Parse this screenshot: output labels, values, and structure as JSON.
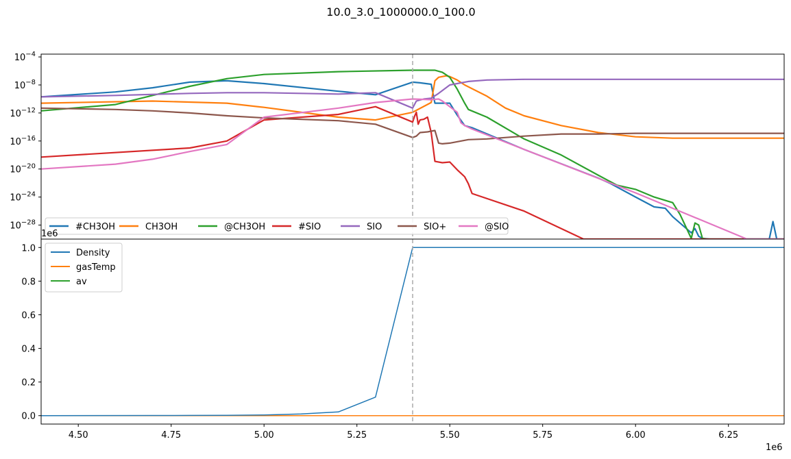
{
  "figure_title": "10.0_3.0_1000000.0_100.0",
  "colors": {
    "#CH3OH": "#1f77b4",
    "CH3OH": "#ff7f0e",
    "@CH3OH": "#2ca02c",
    "#SIO": "#d62728",
    "SIO": "#9467bd",
    "SIO+": "#8c564b",
    "@SIO": "#e377c2",
    "Density": "#1f77b4",
    "gasTemp": "#ff7f0e",
    "av": "#2ca02c",
    "vline": "#aaaaaa"
  },
  "chart_data": [
    {
      "type": "line",
      "yscale": "log",
      "xlim": [
        4400000,
        6400000
      ],
      "ylim_log10": [
        -30,
        -3.6
      ],
      "ytick_labels": [
        "10^-4",
        "10^-8",
        "10^-12",
        "10^-16",
        "10^-20",
        "10^-24",
        "10^-28"
      ],
      "ytick_exponents": [
        -4,
        -8,
        -12,
        -16,
        -20,
        -24,
        -28
      ],
      "vline_x": 5400000,
      "legend_placement": "lower-left",
      "legend_columns": 7,
      "series": [
        {
          "name": "#CH3OH",
          "x": [
            4400000,
            4600000,
            4700000,
            4800000,
            4900000,
            5000000,
            5200000,
            5300000,
            5400000,
            5420000,
            5450000,
            5460000,
            5480000,
            5500000,
            5520000,
            5540000,
            5560000,
            5700000,
            5900000,
            5930000,
            6000000,
            6050000,
            6080000,
            6100000,
            6150000,
            6160000,
            6170000,
            6180000,
            6200000,
            6300000,
            6360000,
            6370000,
            6380000,
            6400000
          ],
          "log10_y": [
            -9.7,
            -9.0,
            -8.4,
            -7.6,
            -7.4,
            -7.8,
            -8.9,
            -9.4,
            -7.6,
            -7.7,
            -7.9,
            -10.6,
            -10.6,
            -10.6,
            -12.3,
            -13.8,
            -14.1,
            -17.2,
            -21.3,
            -22.0,
            -24.0,
            -25.4,
            -25.6,
            -26.8,
            -29.1,
            -28.5,
            -29.6,
            -29.9,
            -30,
            -30,
            -30,
            -27.5,
            -30,
            -30
          ]
        },
        {
          "name": "CH3OH",
          "x": [
            4400000,
            4700000,
            4900000,
            5000000,
            5100000,
            5200000,
            5300000,
            5400000,
            5450000,
            5460000,
            5470000,
            5490000,
            5500000,
            5520000,
            5540000,
            5600000,
            5650000,
            5700000,
            5800000,
            5900000,
            6000000,
            6100000,
            6200000,
            6400000
          ],
          "log10_y": [
            -10.6,
            -10.3,
            -10.6,
            -11.2,
            -11.9,
            -12.6,
            -13.0,
            -11.9,
            -10.5,
            -7.4,
            -6.9,
            -6.7,
            -6.8,
            -7.3,
            -8.0,
            -9.6,
            -11.3,
            -12.4,
            -13.8,
            -14.8,
            -15.4,
            -15.6,
            -15.6,
            -15.6
          ]
        },
        {
          "name": "@CH3OH",
          "x": [
            4400000,
            4600000,
            4800000,
            4900000,
            5000000,
            5200000,
            5400000,
            5460000,
            5480000,
            5500000,
            5520000,
            5540000,
            5550000,
            5600000,
            5700000,
            5800000,
            5900000,
            5950000,
            6000000,
            6050000,
            6100000,
            6120000,
            6150000,
            6160000,
            6170000,
            6180000,
            6190000,
            6200000,
            6400000
          ],
          "log10_y": [
            -11.7,
            -10.8,
            -8.2,
            -7.1,
            -6.5,
            -6.1,
            -5.9,
            -5.9,
            -6.2,
            -6.9,
            -8.6,
            -10.6,
            -11.5,
            -12.6,
            -15.7,
            -18.0,
            -20.9,
            -22.3,
            -22.9,
            -24.0,
            -24.8,
            -26.5,
            -29.9,
            -27.7,
            -28.0,
            -29.9,
            -30,
            -30,
            -30
          ]
        },
        {
          "name": "#SIO",
          "x": [
            4400000,
            4800000,
            4900000,
            5000000,
            5200000,
            5300000,
            5400000,
            5405000,
            5410000,
            5415000,
            5420000,
            5430000,
            5440000,
            5450000,
            5460000,
            5480000,
            5500000,
            5520000,
            5540000,
            5550000,
            5560000,
            5700000,
            5860000,
            6000000,
            6400000
          ],
          "log10_y": [
            -18.3,
            -17.0,
            -16.0,
            -13.0,
            -12.2,
            -11.1,
            -13.3,
            -12.5,
            -11.9,
            -13.6,
            -13.0,
            -12.9,
            -12.6,
            -14.8,
            -18.9,
            -19.1,
            -19.0,
            -20.1,
            -21.1,
            -22.1,
            -23.5,
            -26.0,
            -30,
            -30,
            -30
          ]
        },
        {
          "name": "SIO",
          "x": [
            4400000,
            4600000,
            4800000,
            4900000,
            5000000,
            5200000,
            5300000,
            5400000,
            5410000,
            5430000,
            5450000,
            5470000,
            5500000,
            5550000,
            5600000,
            5700000,
            5800000,
            6000000,
            6200000,
            6400000
          ],
          "log10_y": [
            -9.7,
            -9.5,
            -9.2,
            -9.1,
            -9.1,
            -9.3,
            -9.1,
            -11.3,
            -10.3,
            -10.0,
            -9.9,
            -9.2,
            -8.0,
            -7.5,
            -7.3,
            -7.2,
            -7.2,
            -7.2,
            -7.2,
            -7.2
          ]
        },
        {
          "name": "SIO+",
          "x": [
            4400000,
            4500000,
            4600000,
            4700000,
            4800000,
            4900000,
            5000000,
            5200000,
            5300000,
            5400000,
            5410000,
            5420000,
            5440000,
            5460000,
            5470000,
            5480000,
            5500000,
            5550000,
            5600000,
            5700000,
            5800000,
            5900000,
            6000000,
            6400000
          ],
          "log10_y": [
            -11.3,
            -11.4,
            -11.5,
            -11.7,
            -12.0,
            -12.4,
            -12.7,
            -13.1,
            -13.6,
            -15.5,
            -15.3,
            -14.8,
            -14.7,
            -14.5,
            -16.3,
            -16.4,
            -16.3,
            -15.8,
            -15.7,
            -15.3,
            -15.0,
            -15.0,
            -14.9,
            -14.9
          ]
        },
        {
          "name": "@SIO",
          "x": [
            4400000,
            4600000,
            4700000,
            4800000,
            4900000,
            5000000,
            5200000,
            5300000,
            5400000,
            5450000,
            5470000,
            5480000,
            5500000,
            5520000,
            5530000,
            5540000,
            5560000,
            6000000,
            6300000,
            6400000
          ],
          "log10_y": [
            -20.0,
            -19.3,
            -18.6,
            -17.5,
            -16.5,
            -12.6,
            -11.3,
            -10.5,
            -10.0,
            -10.1,
            -10.0,
            -10.3,
            -11.1,
            -11.9,
            -13.4,
            -13.8,
            -14.3,
            -23.4,
            -30,
            -30
          ]
        }
      ]
    },
    {
      "type": "line",
      "yscale": "linear",
      "xlim": [
        4400000,
        6400000
      ],
      "ylim": [
        -0.05,
        1.05
      ],
      "offset_text_y": "1e6",
      "offset_text_x": "1e6",
      "xtick_values": [
        4500000,
        4750000,
        5000000,
        5250000,
        5500000,
        5750000,
        6000000,
        6250000
      ],
      "xtick_labels": [
        "4.50",
        "4.75",
        "5.00",
        "5.25",
        "5.50",
        "5.75",
        "6.00",
        "6.25"
      ],
      "ytick_values": [
        0.0,
        0.2,
        0.4,
        0.6,
        0.8,
        1.0
      ],
      "ytick_labels": [
        "0.0",
        "0.2",
        "0.4",
        "0.6",
        "0.8",
        "1.0"
      ],
      "vline_x": 5400000,
      "legend_placement": "upper-left",
      "series": [
        {
          "name": "Density",
          "x": [
            4400000,
            4700000,
            4800000,
            4900000,
            5000000,
            5100000,
            5200000,
            5300000,
            5400000,
            6400000
          ],
          "y": [
            0.0,
            0.001,
            0.0015,
            0.002,
            0.004,
            0.01,
            0.022,
            0.11,
            1.0,
            1.0
          ]
        },
        {
          "name": "gasTemp",
          "x": [
            4400000,
            6400000
          ],
          "y": [
            0.0,
            0.0
          ]
        },
        {
          "name": "av",
          "x": [
            4400000,
            6400000
          ],
          "y": [
            0.0,
            0.0
          ]
        }
      ]
    }
  ]
}
